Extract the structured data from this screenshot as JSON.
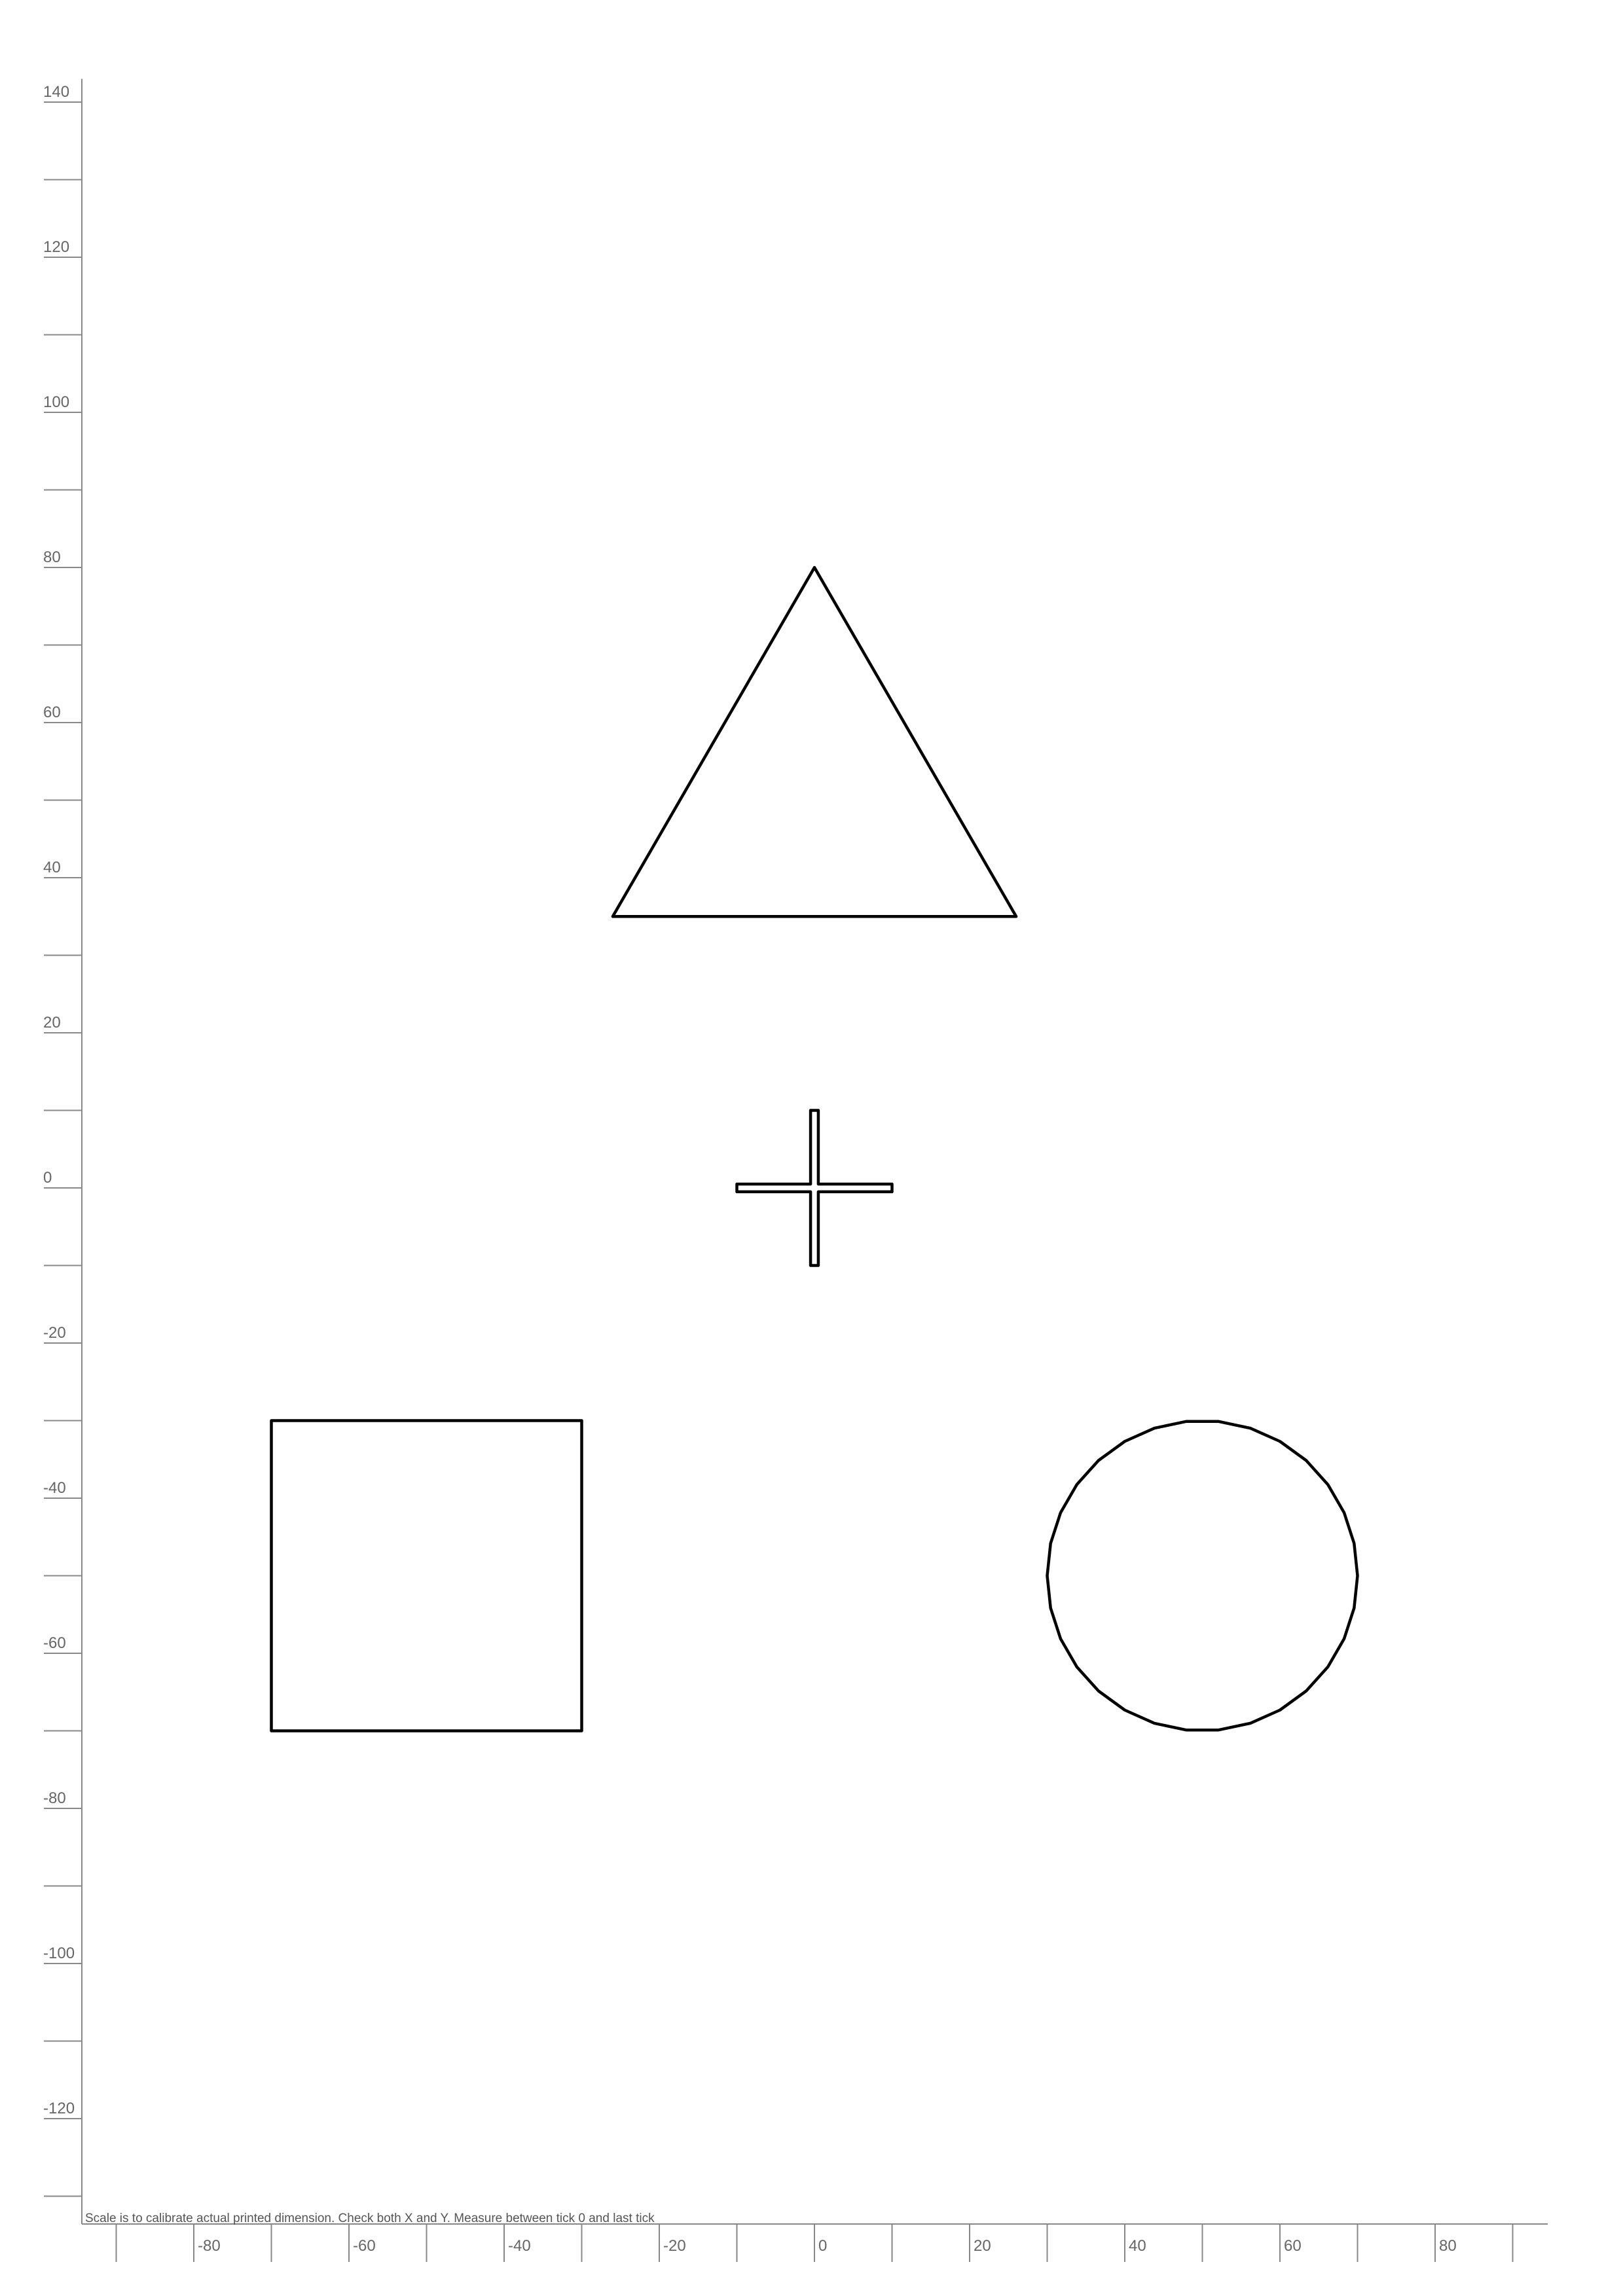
{
  "calibration_note": "Scale is to calibrate actual printed dimension. Check both X and Y. Measure between tick 0 and last tick",
  "x_scale": {
    "range": [
      -90,
      90
    ],
    "major_step": 20,
    "tick_labels": [
      "-80",
      "-60",
      "-40",
      "-20",
      "0",
      "20",
      "40",
      "60",
      "80"
    ]
  },
  "y_scale": {
    "range": [
      -130,
      140
    ],
    "major_step": 20,
    "tick_labels": [
      "140",
      "120",
      "100",
      "80",
      "60",
      "40",
      "20",
      "0",
      "-20",
      "-40",
      "-60",
      "-80",
      "-100",
      "-120"
    ]
  },
  "shapes": [
    {
      "name": "triangle",
      "points": [
        [
          0,
          80
        ],
        [
          -26,
          35
        ],
        [
          26,
          35
        ]
      ]
    },
    {
      "name": "cross",
      "center": [
        0,
        0
      ],
      "arm_length": 10,
      "arm_width": 1
    },
    {
      "name": "square",
      "from": [
        -70,
        -30
      ],
      "to": [
        -30,
        -70
      ]
    },
    {
      "name": "circle",
      "center": [
        50,
        -50
      ],
      "radius": 20,
      "segments": 30
    }
  ],
  "colors": {
    "shape_stroke": "#000000",
    "scale": "#888888",
    "text": "#666666",
    "background": "#ffffff"
  }
}
